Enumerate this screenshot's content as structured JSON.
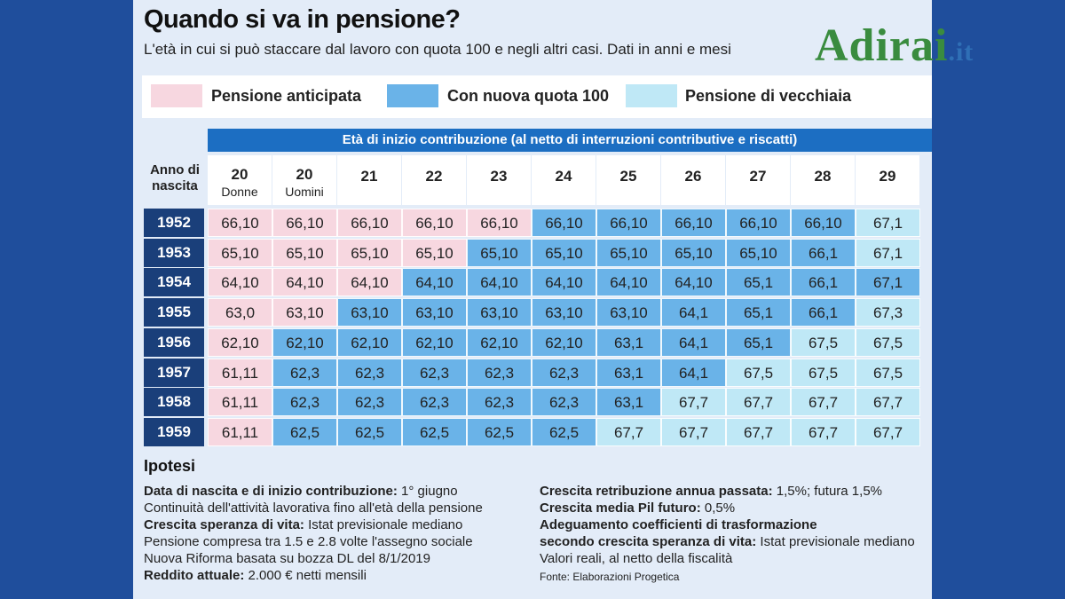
{
  "header": {
    "title": "Quando si va in pensione?",
    "subtitle": "L'età in cui si può staccare dal lavoro con quota 100 e negli altri casi. Dati in anni e mesi"
  },
  "legend": [
    {
      "label": "Pensione anticipata",
      "color": "#f7d7e0"
    },
    {
      "label": "Con nuova quota 100",
      "color": "#6ab3e8"
    },
    {
      "label": "Pensione di vecchiaia",
      "color": "#bfe8f6"
    }
  ],
  "table": {
    "group_header": "Età di inizio contribuzione (al netto di interruzioni contributive e riscatti)",
    "corner_line1": "Anno di",
    "corner_line2": "nascita",
    "columns": [
      {
        "num": "20",
        "sub": "Donne"
      },
      {
        "num": "20",
        "sub": "Uomini"
      },
      {
        "num": "21",
        "sub": ""
      },
      {
        "num": "22",
        "sub": ""
      },
      {
        "num": "23",
        "sub": ""
      },
      {
        "num": "24",
        "sub": ""
      },
      {
        "num": "25",
        "sub": ""
      },
      {
        "num": "26",
        "sub": ""
      },
      {
        "num": "27",
        "sub": ""
      },
      {
        "num": "28",
        "sub": ""
      },
      {
        "num": "29",
        "sub": ""
      }
    ],
    "rows": [
      {
        "year": "1952",
        "values": [
          "66,10",
          "66,10",
          "66,10",
          "66,10",
          "66,10",
          "66,10",
          "66,10",
          "66,10",
          "66,10",
          "66,10",
          "67,1"
        ],
        "kinds": [
          "a",
          "a",
          "a",
          "a",
          "a",
          "q",
          "q",
          "q",
          "q",
          "q",
          "v"
        ]
      },
      {
        "year": "1953",
        "values": [
          "65,10",
          "65,10",
          "65,10",
          "65,10",
          "65,10",
          "65,10",
          "65,10",
          "65,10",
          "65,10",
          "66,1",
          "67,1"
        ],
        "kinds": [
          "a",
          "a",
          "a",
          "a",
          "q",
          "q",
          "q",
          "q",
          "q",
          "q",
          "v"
        ]
      },
      {
        "year": "1954",
        "values": [
          "64,10",
          "64,10",
          "64,10",
          "64,10",
          "64,10",
          "64,10",
          "64,10",
          "64,10",
          "65,1",
          "66,1",
          "67,1"
        ],
        "kinds": [
          "a",
          "a",
          "a",
          "q",
          "q",
          "q",
          "q",
          "q",
          "q",
          "q",
          "q"
        ]
      },
      {
        "year": "1955",
        "values": [
          "63,0",
          "63,10",
          "63,10",
          "63,10",
          "63,10",
          "63,10",
          "63,10",
          "64,1",
          "65,1",
          "66,1",
          "67,3"
        ],
        "kinds": [
          "a",
          "a",
          "q",
          "q",
          "q",
          "q",
          "q",
          "q",
          "q",
          "q",
          "v"
        ]
      },
      {
        "year": "1956",
        "values": [
          "62,10",
          "62,10",
          "62,10",
          "62,10",
          "62,10",
          "62,10",
          "63,1",
          "64,1",
          "65,1",
          "67,5",
          "67,5"
        ],
        "kinds": [
          "a",
          "q",
          "q",
          "q",
          "q",
          "q",
          "q",
          "q",
          "q",
          "v",
          "v"
        ]
      },
      {
        "year": "1957",
        "values": [
          "61,11",
          "62,3",
          "62,3",
          "62,3",
          "62,3",
          "62,3",
          "63,1",
          "64,1",
          "67,5",
          "67,5",
          "67,5"
        ],
        "kinds": [
          "a",
          "q",
          "q",
          "q",
          "q",
          "q",
          "q",
          "q",
          "v",
          "v",
          "v"
        ]
      },
      {
        "year": "1958",
        "values": [
          "61,11",
          "62,3",
          "62,3",
          "62,3",
          "62,3",
          "62,3",
          "63,1",
          "67,7",
          "67,7",
          "67,7",
          "67,7"
        ],
        "kinds": [
          "a",
          "q",
          "q",
          "q",
          "q",
          "q",
          "q",
          "v",
          "v",
          "v",
          "v"
        ]
      },
      {
        "year": "1959",
        "values": [
          "61,11",
          "62,5",
          "62,5",
          "62,5",
          "62,5",
          "62,5",
          "67,7",
          "67,7",
          "67,7",
          "67,7",
          "67,7"
        ],
        "kinds": [
          "a",
          "q",
          "q",
          "q",
          "q",
          "q",
          "v",
          "v",
          "v",
          "v",
          "v"
        ]
      }
    ]
  },
  "notes": {
    "heading": "Ipotesi",
    "left": [
      {
        "bold": "Data di nascita e di inizio contribuzione:",
        "text": " 1° giugno"
      },
      {
        "bold": "",
        "text": "Continuità dell'attività lavorativa fino all'età della pensione"
      },
      {
        "bold": "Crescita speranza di vita:",
        "text": " Istat previsionale mediano"
      },
      {
        "bold": "",
        "text": "Pensione compresa tra 1.5 e 2.8 volte l'assegno sociale"
      },
      {
        "bold": "",
        "text": "Nuova Riforma basata su bozza DL del 8/1/2019"
      },
      {
        "bold": "Reddito attuale:",
        "text": " 2.000 € netti mensili"
      }
    ],
    "right": [
      {
        "bold": "Crescita retribuzione annua passata:",
        "text": " 1,5%; futura 1,5%"
      },
      {
        "bold": "Crescita media Pil futuro:",
        "text": " 0,5%"
      },
      {
        "bold": "Adeguamento coefficienti di trasformazione",
        "text": ""
      },
      {
        "bold": "secondo crescita speranza di vita:",
        "text": " Istat previsionale mediano"
      },
      {
        "bold": "",
        "text": "Valori reali, al netto della fiscalità"
      }
    ],
    "source": "Fonte: Elaborazioni Progetica"
  },
  "watermark": {
    "name": "Adirai",
    "tld": ".it"
  }
}
